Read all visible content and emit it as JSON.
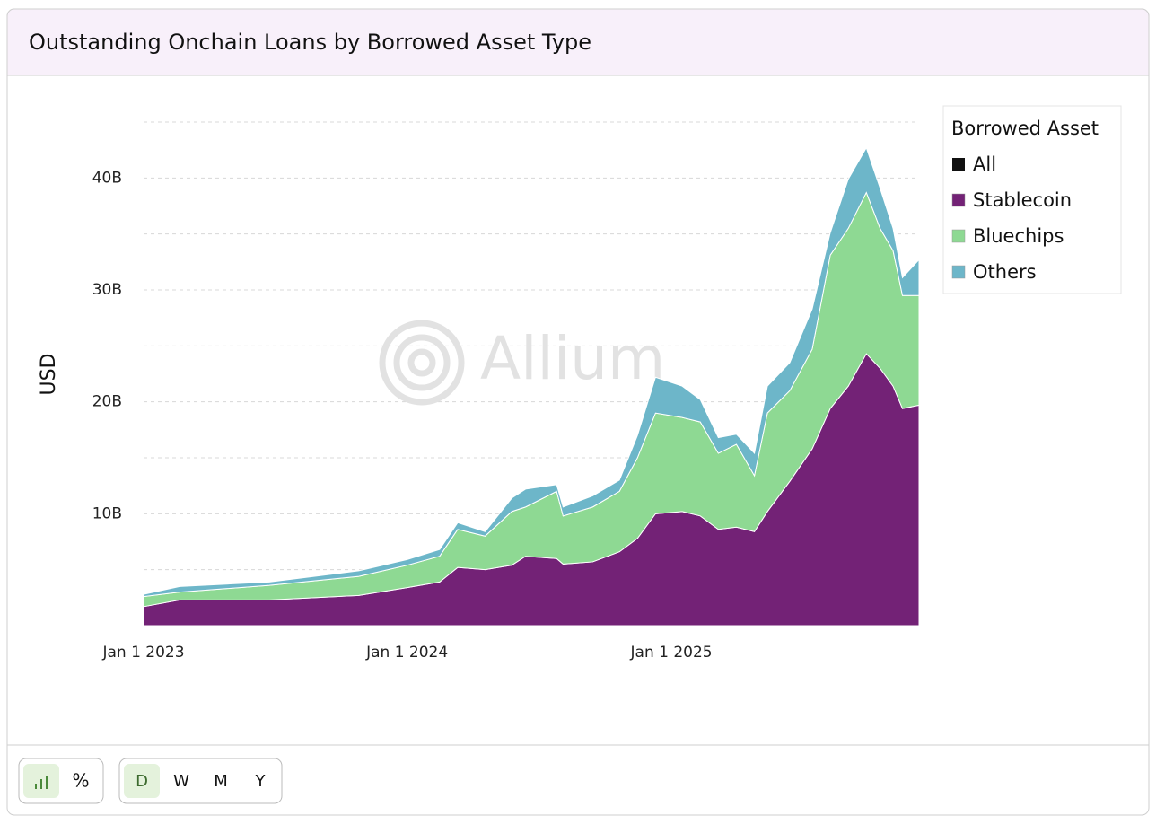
{
  "chart_data": {
    "type": "stacked_area",
    "title": "Outstanding Onchain Loans by Borrowed Asset Type",
    "ylabel": "USD",
    "watermark": "Allium",
    "legend_title": "Borrowed Asset",
    "total": {
      "name": "All",
      "color": "#111111"
    },
    "x": [
      "2023-01-01",
      "2023-02-20",
      "2023-06-24",
      "2023-10-26",
      "2024-01-01",
      "2024-02-15",
      "2024-03-11",
      "2024-04-18",
      "2024-05-25",
      "2024-06-13",
      "2024-07-26",
      "2024-08-04",
      "2024-09-14",
      "2024-10-21",
      "2024-11-15",
      "2024-12-10",
      "2025-01-16",
      "2025-02-10",
      "2025-03-07",
      "2025-04-01",
      "2025-04-26",
      "2025-05-14",
      "2025-06-14",
      "2025-07-15",
      "2025-08-09",
      "2025-09-03",
      "2025-09-28",
      "2025-10-17",
      "2025-11-04",
      "2025-11-17",
      "2025-12-10"
    ],
    "series": [
      {
        "name": "Stablecoin",
        "color": "#732276",
        "values": [
          1.7,
          2.3,
          2.3,
          2.7,
          3.4,
          3.9,
          5.2,
          5.0,
          5.4,
          6.2,
          6.0,
          5.5,
          5.7,
          6.6,
          7.8,
          10.0,
          10.2,
          9.8,
          8.6,
          8.8,
          8.4,
          10.2,
          12.9,
          15.8,
          19.4,
          21.4,
          24.3,
          23.0,
          21.4,
          19.4,
          19.7
        ]
      },
      {
        "name": "Bluechips",
        "color": "#8ed993",
        "values": [
          0.9,
          0.7,
          1.3,
          1.7,
          2.0,
          2.3,
          3.4,
          3.0,
          4.8,
          4.4,
          6.0,
          4.3,
          4.9,
          5.4,
          7.2,
          9.0,
          8.4,
          8.4,
          6.8,
          7.4,
          5.0,
          8.8,
          8.1,
          8.9,
          13.7,
          14.1,
          14.4,
          12.5,
          12.1,
          10.1,
          9.8
        ]
      },
      {
        "name": "Others",
        "color": "#6db6c9",
        "values": [
          0.2,
          0.5,
          0.3,
          0.5,
          0.5,
          0.6,
          0.6,
          0.4,
          1.2,
          1.6,
          0.6,
          0.8,
          1.0,
          1.0,
          2.0,
          3.2,
          2.8,
          2.0,
          1.4,
          0.9,
          2.0,
          2.4,
          2.5,
          3.6,
          2.0,
          4.4,
          4.0,
          3.6,
          2.0,
          1.6,
          3.2
        ]
      }
    ],
    "xlim": [
      "2023-01-01",
      "2025-12-10"
    ],
    "xticks": [
      {
        "value": "2023-01-01",
        "label": "Jan 1 2023"
      },
      {
        "value": "2024-01-01",
        "label": "Jan 1 2024"
      },
      {
        "value": "2025-01-01",
        "label": "Jan 1 2025"
      }
    ],
    "ylim": [
      0,
      45
    ],
    "yticks": [
      {
        "value": 10,
        "label": "10B"
      },
      {
        "value": 20,
        "label": "20B"
      },
      {
        "value": 30,
        "label": "30B"
      },
      {
        "value": 40,
        "label": "40B"
      }
    ],
    "minor_yticks": [
      5,
      15,
      25,
      35,
      45
    ],
    "grid": true
  },
  "controls": {
    "percent": "%",
    "intervals": [
      "D",
      "W",
      "M",
      "Y"
    ]
  }
}
